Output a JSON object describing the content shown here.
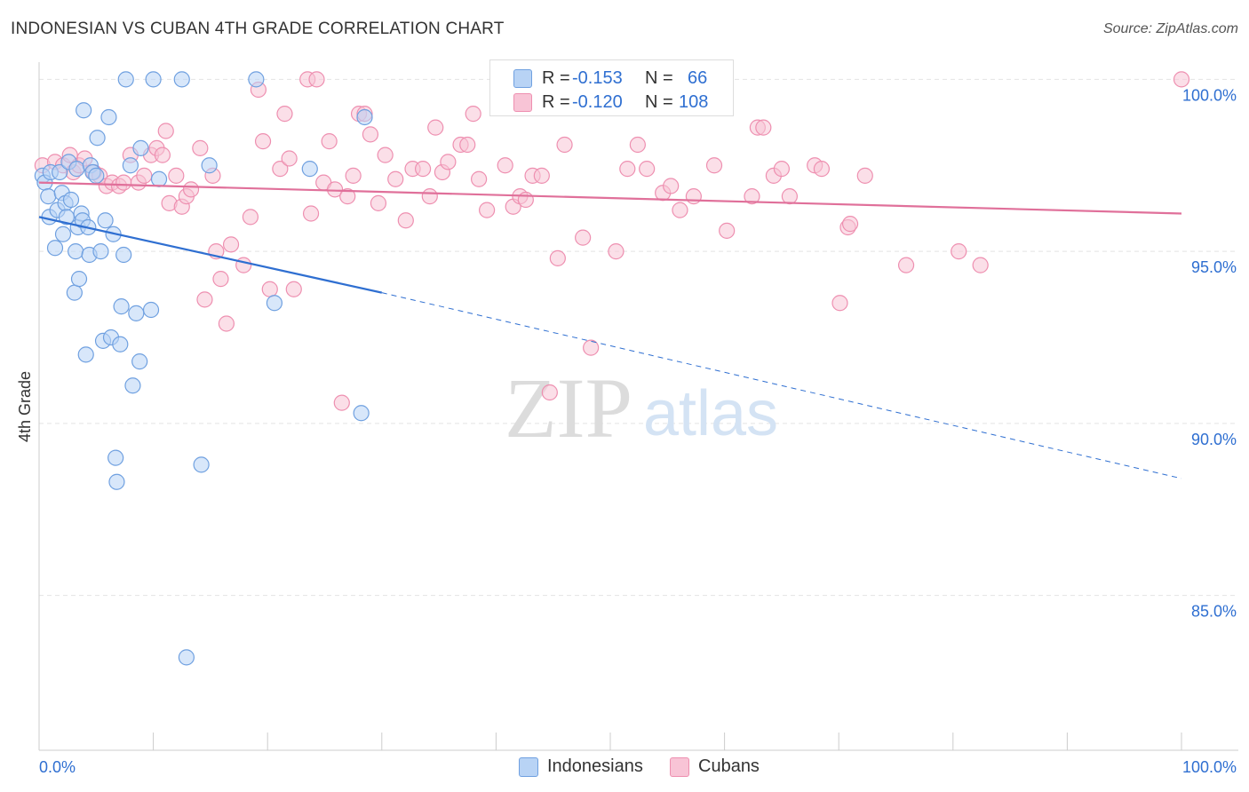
{
  "title": "INDONESIAN VS CUBAN 4TH GRADE CORRELATION CHART",
  "source": "Source: ZipAtlas.com",
  "watermark": {
    "zip": "ZIP",
    "atlas": "atlas"
  },
  "stats": {
    "r_label": "R =",
    "n_label": "N =",
    "rows": [
      {
        "r": "-0.153",
        "n": "66"
      },
      {
        "r": "-0.120",
        "n": "108"
      }
    ]
  },
  "legend": {
    "items": [
      "Indonesians",
      "Cubans"
    ]
  },
  "colors": {
    "blue_fill": "#b8d3f5",
    "blue_stroke": "#6fa0e0",
    "blue_line": "#2f6fd1",
    "pink_fill": "#f8c4d6",
    "pink_stroke": "#ee8fb0",
    "pink_line": "#e0709a",
    "axis_text": "#2f6fd1",
    "grid": "#e4e4e4"
  },
  "chart_data": {
    "type": "scatter",
    "title": "INDONESIAN VS CUBAN 4TH GRADE CORRELATION CHART",
    "xlabel": "",
    "ylabel": "4th Grade",
    "xlim": [
      0,
      100
    ],
    "ylim": [
      80.5,
      100.5
    ],
    "x_tick_labels": [
      "0.0%",
      "100.0%"
    ],
    "y_ticks": [
      85,
      90,
      95,
      100
    ],
    "y_tick_labels": [
      "85.0%",
      "90.0%",
      "95.0%",
      "100.0%"
    ],
    "grid": true,
    "legend_position": "bottom-center",
    "series": [
      {
        "name": "Indonesians",
        "stats": {
          "R": -0.153,
          "N": 66
        },
        "trend": {
          "x0": 0,
          "y0": 96.0,
          "x1": 30,
          "y1": 93.8,
          "dash_x_end": 100,
          "dash_y_end": 88.4
        },
        "points": [
          [
            0.3,
            97.2
          ],
          [
            0.5,
            97.0
          ],
          [
            0.8,
            96.6
          ],
          [
            0.9,
            96.0
          ],
          [
            1.0,
            97.3
          ],
          [
            1.4,
            95.1
          ],
          [
            1.6,
            96.2
          ],
          [
            1.8,
            97.3
          ],
          [
            2.0,
            96.7
          ],
          [
            2.1,
            95.5
          ],
          [
            2.3,
            96.4
          ],
          [
            2.4,
            96.0
          ],
          [
            2.6,
            97.6
          ],
          [
            2.8,
            96.5
          ],
          [
            3.1,
            93.8
          ],
          [
            3.2,
            95.0
          ],
          [
            3.3,
            97.4
          ],
          [
            3.4,
            95.7
          ],
          [
            3.5,
            94.2
          ],
          [
            3.7,
            96.1
          ],
          [
            3.8,
            95.9
          ],
          [
            3.9,
            99.1
          ],
          [
            4.1,
            92.0
          ],
          [
            4.3,
            95.7
          ],
          [
            4.4,
            94.9
          ],
          [
            4.5,
            97.5
          ],
          [
            4.7,
            97.3
          ],
          [
            5.0,
            97.2
          ],
          [
            5.1,
            98.3
          ],
          [
            5.4,
            95.0
          ],
          [
            5.6,
            92.4
          ],
          [
            5.8,
            95.9
          ],
          [
            6.1,
            98.9
          ],
          [
            6.3,
            92.5
          ],
          [
            6.5,
            95.5
          ],
          [
            6.7,
            89.0
          ],
          [
            6.8,
            88.3
          ],
          [
            7.1,
            92.3
          ],
          [
            7.2,
            93.4
          ],
          [
            7.4,
            94.9
          ],
          [
            7.6,
            100.0
          ],
          [
            8.0,
            97.5
          ],
          [
            8.2,
            91.1
          ],
          [
            8.5,
            93.2
          ],
          [
            8.8,
            91.8
          ],
          [
            8.9,
            98.0
          ],
          [
            9.8,
            93.3
          ],
          [
            10.0,
            100.0
          ],
          [
            10.5,
            97.1
          ],
          [
            12.5,
            100.0
          ],
          [
            12.9,
            83.2
          ],
          [
            14.2,
            88.8
          ],
          [
            14.9,
            97.5
          ],
          [
            19.0,
            100.0
          ],
          [
            20.6,
            93.5
          ],
          [
            23.7,
            97.4
          ],
          [
            28.2,
            90.3
          ],
          [
            28.5,
            98.9
          ]
        ]
      },
      {
        "name": "Cubans",
        "stats": {
          "R": -0.12,
          "N": 108
        },
        "trend": {
          "x0": 0,
          "y0": 97.0,
          "x1": 100,
          "y1": 96.1
        },
        "points": [
          [
            0.3,
            97.5
          ],
          [
            1.4,
            97.6
          ],
          [
            2.1,
            97.5
          ],
          [
            2.7,
            97.8
          ],
          [
            3.0,
            97.3
          ],
          [
            3.5,
            97.5
          ],
          [
            4.0,
            97.7
          ],
          [
            4.8,
            97.3
          ],
          [
            5.3,
            97.2
          ],
          [
            5.9,
            96.9
          ],
          [
            6.4,
            97.0
          ],
          [
            7.0,
            96.9
          ],
          [
            7.4,
            97.0
          ],
          [
            8.0,
            97.8
          ],
          [
            8.7,
            97.0
          ],
          [
            9.2,
            97.2
          ],
          [
            9.8,
            97.8
          ],
          [
            10.3,
            98.0
          ],
          [
            10.8,
            97.8
          ],
          [
            11.1,
            98.5
          ],
          [
            11.4,
            96.4
          ],
          [
            12.0,
            97.2
          ],
          [
            12.5,
            96.3
          ],
          [
            12.9,
            96.6
          ],
          [
            13.3,
            96.8
          ],
          [
            14.1,
            98.0
          ],
          [
            14.5,
            93.6
          ],
          [
            15.2,
            97.2
          ],
          [
            15.5,
            95.0
          ],
          [
            15.9,
            94.2
          ],
          [
            16.4,
            92.9
          ],
          [
            16.8,
            95.2
          ],
          [
            17.9,
            94.6
          ],
          [
            18.5,
            96.0
          ],
          [
            19.2,
            99.7
          ],
          [
            19.6,
            98.2
          ],
          [
            20.2,
            93.9
          ],
          [
            21.1,
            97.4
          ],
          [
            21.5,
            99.0
          ],
          [
            21.9,
            97.7
          ],
          [
            22.3,
            93.9
          ],
          [
            23.5,
            100.0
          ],
          [
            23.8,
            96.1
          ],
          [
            24.3,
            100.0
          ],
          [
            24.9,
            97.0
          ],
          [
            25.4,
            98.2
          ],
          [
            25.9,
            96.8
          ],
          [
            26.5,
            90.6
          ],
          [
            27.0,
            96.6
          ],
          [
            27.5,
            97.2
          ],
          [
            28.0,
            99.0
          ],
          [
            28.5,
            99.0
          ],
          [
            29.0,
            98.4
          ],
          [
            29.7,
            96.4
          ],
          [
            30.3,
            97.8
          ],
          [
            31.2,
            97.1
          ],
          [
            32.1,
            95.9
          ],
          [
            32.7,
            97.4
          ],
          [
            33.6,
            97.4
          ],
          [
            34.2,
            96.6
          ],
          [
            34.7,
            98.6
          ],
          [
            35.3,
            97.3
          ],
          [
            35.8,
            97.6
          ],
          [
            36.9,
            98.1
          ],
          [
            37.5,
            98.1
          ],
          [
            38.0,
            99.0
          ],
          [
            38.5,
            97.1
          ],
          [
            39.2,
            96.2
          ],
          [
            40.8,
            97.5
          ],
          [
            41.5,
            96.3
          ],
          [
            42.1,
            96.6
          ],
          [
            42.6,
            96.5
          ],
          [
            43.2,
            97.2
          ],
          [
            44.0,
            97.2
          ],
          [
            44.7,
            90.9
          ],
          [
            45.4,
            94.8
          ],
          [
            46.0,
            98.1
          ],
          [
            47.6,
            95.4
          ],
          [
            48.3,
            92.2
          ],
          [
            50.5,
            95.0
          ],
          [
            51.5,
            97.4
          ],
          [
            52.4,
            98.1
          ],
          [
            53.2,
            97.4
          ],
          [
            54.6,
            96.7
          ],
          [
            55.3,
            96.9
          ],
          [
            56.1,
            96.2
          ],
          [
            57.3,
            96.6
          ],
          [
            59.1,
            97.5
          ],
          [
            60.2,
            95.6
          ],
          [
            62.4,
            96.6
          ],
          [
            62.9,
            98.6
          ],
          [
            63.4,
            98.6
          ],
          [
            64.3,
            97.2
          ],
          [
            65.0,
            97.4
          ],
          [
            65.7,
            96.6
          ],
          [
            67.9,
            97.5
          ],
          [
            68.5,
            97.4
          ],
          [
            70.1,
            93.5
          ],
          [
            70.8,
            95.7
          ],
          [
            71.0,
            95.8
          ],
          [
            72.3,
            97.2
          ],
          [
            75.9,
            94.6
          ],
          [
            80.5,
            95.0
          ],
          [
            82.4,
            94.6
          ],
          [
            100.0,
            100.0
          ]
        ]
      }
    ]
  }
}
